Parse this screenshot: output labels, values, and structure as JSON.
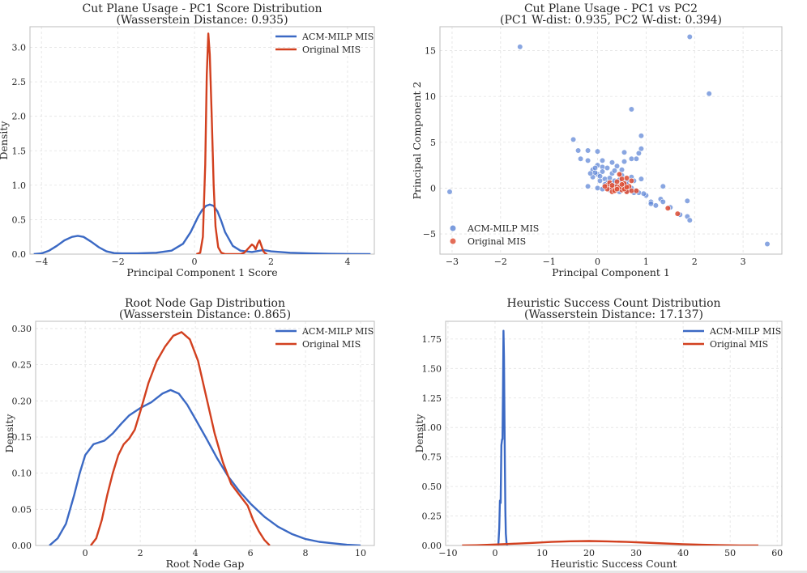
{
  "colors": {
    "acm": "#3b69c4",
    "orig": "#d2401f",
    "scatter_acm": "#5b84d6",
    "scatter_orig": "#dd4a30"
  },
  "chart_data": [
    {
      "type": "line",
      "title": "Cut Plane Usage - PC1 Score Distribution",
      "subtitle": "(Wasserstein Distance: 0.935)",
      "xlabel": "Principal Component 1 Score",
      "ylabel": "Density",
      "xlim": [
        -4.3,
        4.7
      ],
      "ylim": [
        0,
        3.3
      ],
      "xticks": [
        -4,
        -2,
        0,
        2,
        4
      ],
      "yticks": [
        0.0,
        0.5,
        1.0,
        1.5,
        2.0,
        2.5,
        3.0
      ],
      "grid": true,
      "legend_position": "top-right",
      "series": [
        {
          "name": "ACM-MILP MIS",
          "color": "#3b69c4",
          "x": [
            -4.2,
            -4.0,
            -3.8,
            -3.6,
            -3.4,
            -3.2,
            -3.05,
            -2.9,
            -2.7,
            -2.5,
            -2.3,
            -2.1,
            -1.9,
            -1.5,
            -1.0,
            -0.6,
            -0.3,
            -0.1,
            0.1,
            0.2,
            0.3,
            0.4,
            0.5,
            0.6,
            0.7,
            0.8,
            1.0,
            1.2,
            1.5,
            1.8,
            2.0,
            2.5,
            3.0,
            3.5,
            4.0,
            4.6
          ],
          "y": [
            0.0,
            0.01,
            0.05,
            0.12,
            0.2,
            0.25,
            0.265,
            0.25,
            0.18,
            0.1,
            0.04,
            0.015,
            0.01,
            0.01,
            0.02,
            0.05,
            0.15,
            0.32,
            0.55,
            0.64,
            0.7,
            0.72,
            0.7,
            0.62,
            0.48,
            0.32,
            0.12,
            0.05,
            0.03,
            0.06,
            0.04,
            0.02,
            0.01,
            0.005,
            0.002,
            0.0
          ]
        },
        {
          "name": "Original MIS",
          "color": "#d2401f",
          "x": [
            0.05,
            0.15,
            0.22,
            0.28,
            0.32,
            0.36,
            0.4,
            0.45,
            0.5,
            0.55,
            0.62,
            0.7,
            0.8,
            1.0,
            1.2,
            1.3,
            1.4,
            1.5,
            1.55,
            1.6,
            1.65,
            1.7,
            1.75,
            1.8,
            1.85,
            1.9
          ],
          "y": [
            0.0,
            0.02,
            0.25,
            1.3,
            2.6,
            3.2,
            2.9,
            2.0,
            1.0,
            0.4,
            0.1,
            0.02,
            0.0,
            0.0,
            0.0,
            0.02,
            0.08,
            0.14,
            0.12,
            0.07,
            0.15,
            0.2,
            0.12,
            0.04,
            0.01,
            0.0
          ]
        }
      ]
    },
    {
      "type": "scatter",
      "title": "Cut Plane Usage - PC1 vs PC2",
      "subtitle": "(PC1 W-dist: 0.935, PC2 W-dist: 0.394)",
      "xlabel": "Principal Component 1",
      "ylabel": "Principal Component 2",
      "xlim": [
        -3.25,
        3.8
      ],
      "ylim": [
        -7.2,
        17.6
      ],
      "xticks": [
        -3,
        -2,
        -1,
        0,
        1,
        2,
        3
      ],
      "yticks": [
        -5,
        0,
        5,
        10,
        15
      ],
      "grid": true,
      "legend_position": "bottom-left",
      "series": [
        {
          "name": "ACM-MILP MIS",
          "color": "#5b84d6",
          "points": [
            [
              -1.6,
              15.4
            ],
            [
              1.9,
              16.5
            ],
            [
              2.3,
              10.3
            ],
            [
              0.7,
              8.6
            ],
            [
              0.9,
              5.7
            ],
            [
              -0.5,
              5.3
            ],
            [
              0.9,
              4.3
            ],
            [
              0.85,
              3.8
            ],
            [
              0.7,
              3.2
            ],
            [
              0.8,
              3.2
            ],
            [
              0.9,
              1.0
            ],
            [
              -0.4,
              4.1
            ],
            [
              -0.2,
              4.1
            ],
            [
              0.0,
              4.0
            ],
            [
              -0.35,
              3.2
            ],
            [
              0.55,
              3.9
            ],
            [
              -0.2,
              3.0
            ],
            [
              0.1,
              3.0
            ],
            [
              0.3,
              2.8
            ],
            [
              0.55,
              2.9
            ],
            [
              0.1,
              2.3
            ],
            [
              0.2,
              2.2
            ],
            [
              0.5,
              2.0
            ],
            [
              -0.1,
              2.0
            ],
            [
              0.0,
              1.5
            ],
            [
              0.3,
              1.6
            ],
            [
              0.5,
              1.4
            ],
            [
              0.7,
              1.2
            ],
            [
              0.75,
              0.8
            ],
            [
              -0.1,
              1.2
            ],
            [
              0.05,
              0.8
            ],
            [
              0.3,
              0.5
            ],
            [
              0.45,
              0.9
            ],
            [
              0.6,
              0.7
            ],
            [
              0.2,
              0.2
            ],
            [
              0.4,
              0.1
            ],
            [
              0.55,
              0.3
            ],
            [
              0.7,
              0.0
            ],
            [
              0.8,
              -0.3
            ],
            [
              0.85,
              -0.5
            ],
            [
              1.0,
              -0.8
            ],
            [
              1.3,
              -1.2
            ],
            [
              1.35,
              -1.5
            ],
            [
              1.35,
              0.2
            ],
            [
              1.1,
              -1.5
            ],
            [
              1.1,
              -1.7
            ],
            [
              1.2,
              -1.9
            ],
            [
              1.5,
              -2.1
            ],
            [
              1.7,
              -2.9
            ],
            [
              1.85,
              -3.1
            ],
            [
              1.9,
              -3.5
            ],
            [
              1.85,
              -1.4
            ],
            [
              3.5,
              -6.1
            ],
            [
              -3.05,
              -0.4
            ],
            [
              -0.2,
              0.2
            ],
            [
              0.0,
              0.0
            ],
            [
              0.1,
              -0.1
            ],
            [
              0.25,
              -0.2
            ],
            [
              0.35,
              0.3
            ],
            [
              0.15,
              1.0
            ],
            [
              0.0,
              2.5
            ],
            [
              -0.05,
              1.7
            ],
            [
              0.4,
              2.4
            ],
            [
              0.6,
              0.4
            ],
            [
              0.65,
              -0.2
            ],
            [
              0.95,
              -0.6
            ],
            [
              0.45,
              -0.4
            ],
            [
              0.2,
              0.6
            ],
            [
              0.1,
              1.8
            ],
            [
              -0.15,
              1.6
            ],
            [
              0.05,
              1.3
            ],
            [
              0.25,
              1.1
            ],
            [
              0.35,
              0.8
            ],
            [
              0.5,
              0.2
            ],
            [
              0.6,
              -0.3
            ],
            [
              0.75,
              -0.5
            ],
            [
              0.3,
              -0.1
            ],
            [
              0.15,
              0.4
            ],
            [
              -0.05,
              2.2
            ],
            [
              0.35,
              1.9
            ]
          ]
        },
        {
          "name": "Original MIS",
          "color": "#dd4a30",
          "points": [
            [
              0.45,
              1.5
            ],
            [
              0.6,
              1.1
            ],
            [
              0.7,
              0.8
            ],
            [
              0.5,
              1.0
            ],
            [
              0.2,
              0.3
            ],
            [
              0.3,
              0.0
            ],
            [
              0.4,
              0.2
            ],
            [
              0.5,
              -0.2
            ],
            [
              0.6,
              -0.4
            ],
            [
              0.3,
              -0.4
            ],
            [
              0.2,
              -0.1
            ],
            [
              0.35,
              -0.3
            ],
            [
              0.45,
              0.1
            ],
            [
              0.55,
              0.5
            ],
            [
              0.7,
              -0.3
            ],
            [
              0.65,
              0.2
            ],
            [
              0.25,
              0.6
            ],
            [
              0.4,
              0.7
            ],
            [
              0.15,
              0.2
            ],
            [
              0.55,
              -0.1
            ],
            [
              1.45,
              -2.2
            ],
            [
              1.65,
              -2.8
            ],
            [
              0.5,
              0.4
            ],
            [
              0.3,
              0.3
            ],
            [
              0.4,
              -0.1
            ],
            [
              0.6,
              0.1
            ],
            [
              0.8,
              -0.3
            ]
          ]
        }
      ]
    },
    {
      "type": "line",
      "title": "Root Node Gap Distribution",
      "subtitle": "(Wasserstein Distance: 0.865)",
      "xlabel": "Root Node Gap",
      "ylabel": "Density",
      "xlim": [
        -1.8,
        10.5
      ],
      "ylim": [
        0,
        0.31
      ],
      "xticks": [
        0,
        2,
        4,
        6,
        8,
        10
      ],
      "yticks": [
        0.0,
        0.05,
        0.1,
        0.15,
        0.2,
        0.25,
        0.3
      ],
      "grid": true,
      "legend_position": "top-right",
      "series": [
        {
          "name": "ACM-MILP MIS",
          "color": "#3b69c4",
          "x": [
            -1.3,
            -1.0,
            -0.7,
            -0.4,
            -0.2,
            0.0,
            0.3,
            0.7,
            1.0,
            1.3,
            1.6,
            2.0,
            2.4,
            2.8,
            3.1,
            3.4,
            3.7,
            4.0,
            4.4,
            4.8,
            5.2,
            5.6,
            6.0,
            6.5,
            7.0,
            7.5,
            8.0,
            8.5,
            9.0,
            9.5,
            10.0
          ],
          "y": [
            0.0,
            0.01,
            0.03,
            0.07,
            0.1,
            0.125,
            0.14,
            0.145,
            0.155,
            0.168,
            0.18,
            0.19,
            0.198,
            0.21,
            0.215,
            0.21,
            0.195,
            0.175,
            0.148,
            0.12,
            0.095,
            0.075,
            0.058,
            0.04,
            0.026,
            0.016,
            0.009,
            0.005,
            0.003,
            0.001,
            0.0
          ]
        },
        {
          "name": "Original MIS",
          "color": "#d2401f",
          "x": [
            0.2,
            0.4,
            0.6,
            0.8,
            1.0,
            1.2,
            1.4,
            1.6,
            1.8,
            2.0,
            2.3,
            2.6,
            2.9,
            3.2,
            3.5,
            3.8,
            4.1,
            4.4,
            4.7,
            5.0,
            5.3,
            5.6,
            5.9,
            6.1,
            6.3,
            6.5,
            6.7
          ],
          "y": [
            0.0,
            0.01,
            0.035,
            0.07,
            0.1,
            0.125,
            0.14,
            0.148,
            0.16,
            0.185,
            0.225,
            0.255,
            0.275,
            0.29,
            0.295,
            0.285,
            0.255,
            0.205,
            0.155,
            0.115,
            0.085,
            0.07,
            0.055,
            0.035,
            0.02,
            0.008,
            0.0
          ]
        }
      ]
    },
    {
      "type": "line",
      "title": "Heuristic Success Count Distribution",
      "subtitle": "(Wasserstein Distance: 17.137)",
      "xlabel": "Heuristic Success Count",
      "ylabel": "Density",
      "xlim": [
        -10.5,
        61
      ],
      "ylim": [
        0,
        1.9
      ],
      "xticks": [
        -10,
        0,
        10,
        20,
        30,
        40,
        50,
        60
      ],
      "yticks": [
        0.0,
        0.25,
        0.5,
        0.75,
        1.0,
        1.25,
        1.5,
        1.75
      ],
      "grid": true,
      "legend_position": "top-right",
      "series": [
        {
          "name": "ACM-MILP MIS",
          "color": "#3b69c4",
          "x": [
            0.7,
            0.9,
            1.05,
            1.2,
            1.35,
            1.5,
            1.6,
            1.7,
            1.8,
            1.9,
            2.0,
            2.1,
            2.2,
            2.3,
            2.45,
            2.6
          ],
          "y": [
            0.0,
            0.15,
            0.38,
            0.36,
            0.85,
            0.9,
            0.9,
            1.3,
            1.82,
            1.6,
            1.1,
            0.7,
            0.3,
            0.1,
            0.02,
            0.0
          ]
        },
        {
          "name": "Original MIS",
          "color": "#d2401f",
          "x": [
            -7,
            -4,
            0,
            4,
            8,
            12,
            16,
            20,
            24,
            28,
            32,
            36,
            40,
            44,
            48,
            52,
            56
          ],
          "y": [
            0.0,
            0.002,
            0.008,
            0.015,
            0.022,
            0.03,
            0.036,
            0.038,
            0.035,
            0.03,
            0.024,
            0.017,
            0.011,
            0.006,
            0.003,
            0.001,
            0.0
          ]
        }
      ]
    }
  ]
}
